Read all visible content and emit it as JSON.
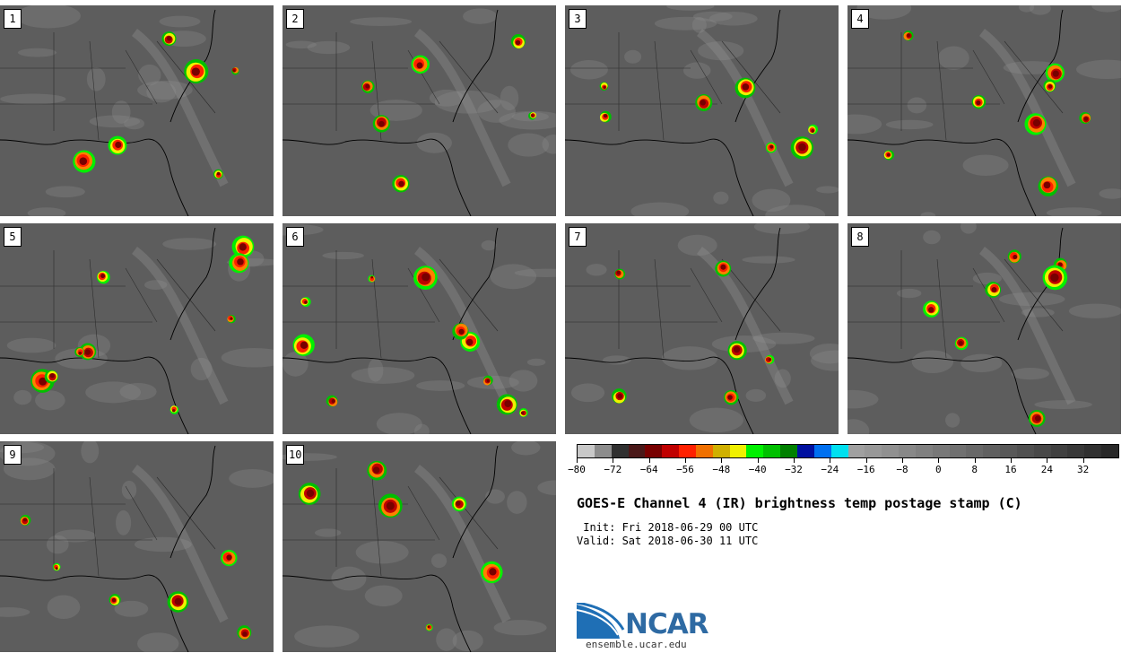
{
  "panels": [
    {
      "label": "1"
    },
    {
      "label": "2"
    },
    {
      "label": "3"
    },
    {
      "label": "4"
    },
    {
      "label": "5"
    },
    {
      "label": "6"
    },
    {
      "label": "7"
    },
    {
      "label": "8"
    },
    {
      "label": "9"
    },
    {
      "label": "10"
    }
  ],
  "colorbar": {
    "colors": [
      "#c8c8c8",
      "#8c8c8c",
      "#303030",
      "#4a1818",
      "#780000",
      "#c00000",
      "#ff2000",
      "#f07000",
      "#d0b000",
      "#f0f000",
      "#00f000",
      "#00c000",
      "#008000",
      "#0010a0",
      "#0070f0",
      "#00e0f0",
      "#a0a0a0",
      "#989898",
      "#909090",
      "#888888",
      "#808080",
      "#787878",
      "#707070",
      "#686868",
      "#606060",
      "#585858",
      "#505050",
      "#484848",
      "#404040",
      "#383838",
      "#303030",
      "#282828"
    ],
    "tick_values": [
      -80,
      -72,
      -64,
      -56,
      -48,
      -40,
      -32,
      -24,
      -16,
      -8,
      0,
      8,
      16,
      24,
      32
    ],
    "tick_labels": [
      "−80",
      "−72",
      "−64",
      "−56",
      "−48",
      "−40",
      "−32",
      "−24",
      "−16",
      "−8",
      "0",
      "8",
      "16",
      "24",
      "32"
    ],
    "min": -80,
    "max": 40
  },
  "title": "GOES-E Channel 4 (IR) brightness temp postage stamp (C)",
  "init": " Init: Fri 2018-06-29 00 UTC",
  "valid": "Valid: Sat 2018-06-30 11 UTC",
  "logo_text": "NCAR",
  "site": "ensemble.ucar.edu"
}
